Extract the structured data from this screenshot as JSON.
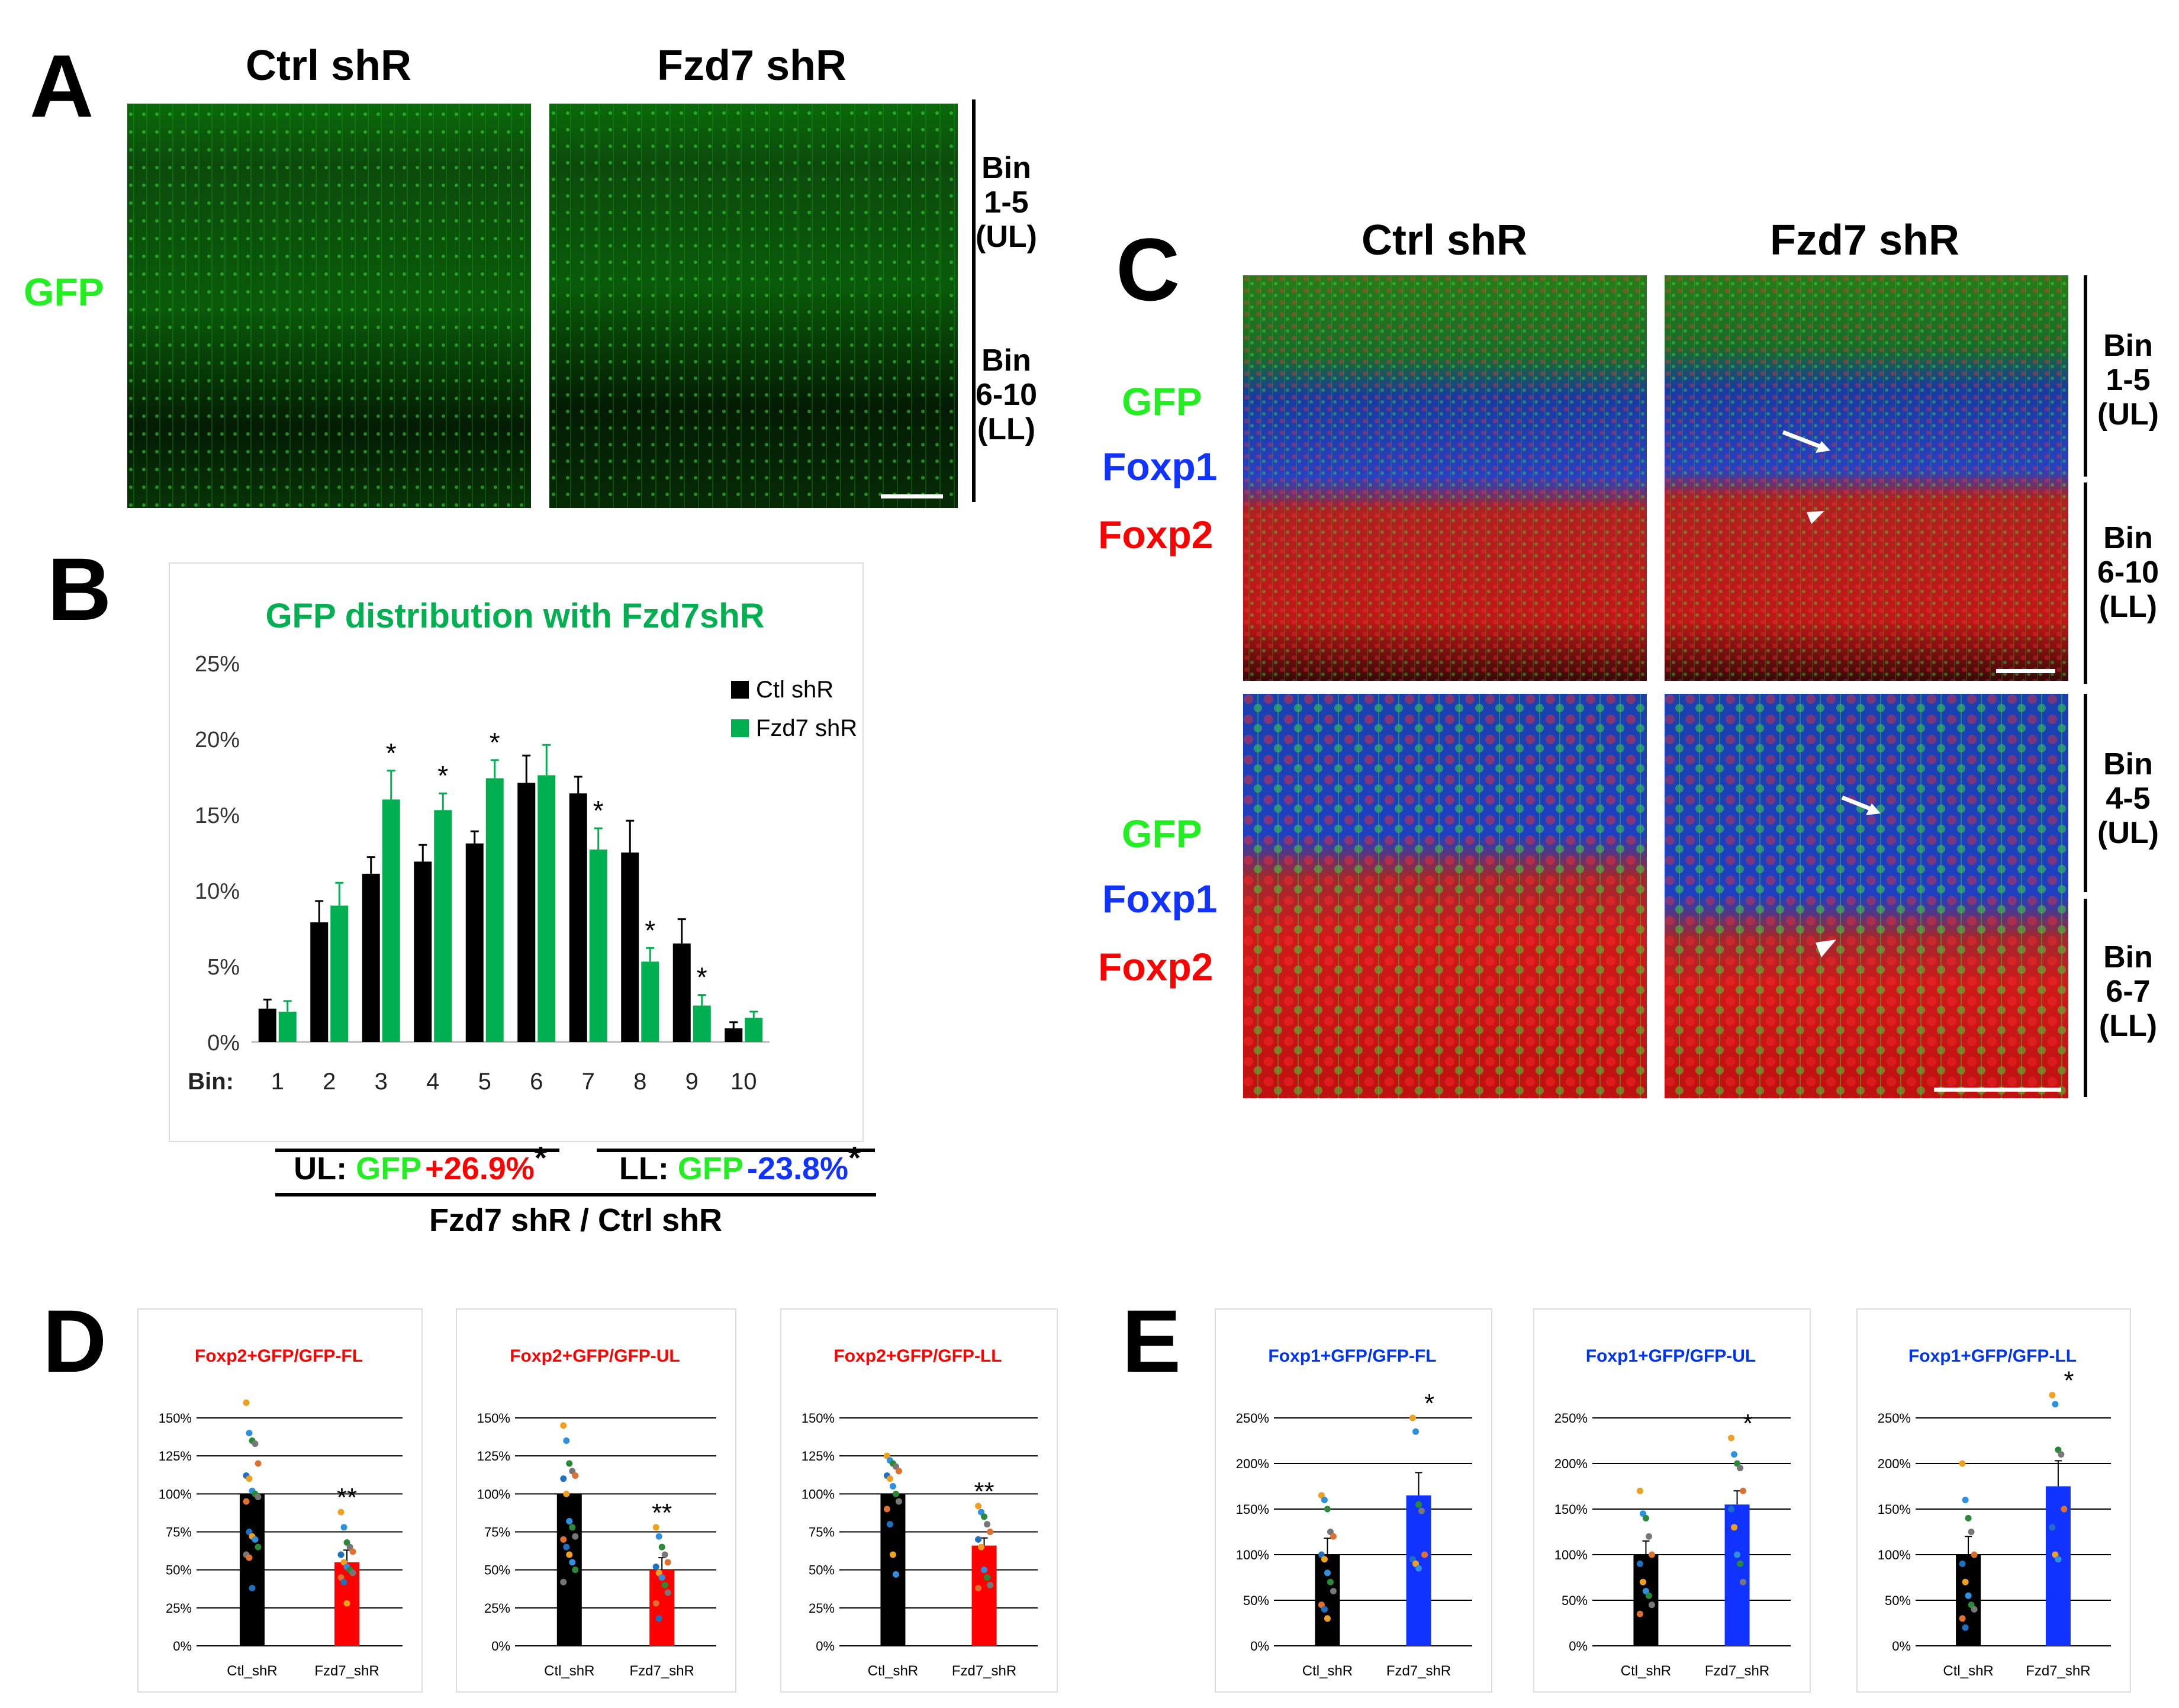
{
  "panel_a": {
    "letter": "A",
    "col_titles": [
      "Ctrl shR",
      "Fzd7 shR"
    ],
    "stain": "GFP",
    "bins": [
      {
        "l1": "Bin",
        "l2": "1-5",
        "l3": "(UL)"
      },
      {
        "l1": "Bin",
        "l2": "6-10",
        "l3": "(LL)"
      }
    ]
  },
  "panel_c": {
    "letter": "C",
    "col_titles": [
      "Ctrl shR",
      "Fzd7 shR"
    ],
    "stains": [
      "GFP",
      "Foxp1",
      "Foxp2"
    ],
    "bins_top": [
      {
        "l1": "Bin",
        "l2": "1-5",
        "l3": "(UL)"
      },
      {
        "l1": "Bin",
        "l2": "6-10",
        "l3": "(LL)"
      }
    ],
    "bins_bottom": [
      {
        "l1": "Bin",
        "l2": "4-5",
        "l3": "(UL)"
      },
      {
        "l1": "Bin",
        "l2": "6-7",
        "l3": "(LL)"
      }
    ]
  },
  "panel_b": {
    "letter": "B",
    "bin_prefix": "Bin:",
    "ul_label": "UL:",
    "ll_label": "LL:",
    "gfp_word": "GFP",
    "ul_change": "+26.9%",
    "ll_change": "-23.8%",
    "star": "*",
    "ratio_label": "Fzd7 shR / Ctrl shR"
  },
  "panel_d_letter": "D",
  "panel_e_letter": "E",
  "colors": {
    "green": "#00b050",
    "bright_green": "#22ee22",
    "blue": "#0033ee",
    "red": "#ff0000",
    "black": "#000000",
    "fzd7_red": "#ff0000",
    "fzd7_blue": "#1133ff"
  },
  "chart_data": [
    {
      "id": "B",
      "type": "bar",
      "title": "GFP distribution with Fzd7shR",
      "categories": [
        "1",
        "2",
        "3",
        "4",
        "5",
        "6",
        "7",
        "8",
        "9",
        "10"
      ],
      "ylim": [
        0,
        25
      ],
      "yticks": [
        "0%",
        "5%",
        "10%",
        "15%",
        "20%",
        "25%"
      ],
      "series": [
        {
          "name": "Ctl shR",
          "values": [
            2.2,
            7.9,
            11.1,
            11.9,
            13.1,
            17.1,
            16.4,
            12.5,
            6.5,
            0.9
          ],
          "errors": [
            0.6,
            1.4,
            1.1,
            1.1,
            0.8,
            1.8,
            1.1,
            2.1,
            1.6,
            0.4
          ]
        },
        {
          "name": "Fzd7 shR",
          "values": [
            2.0,
            9.0,
            16.0,
            15.3,
            17.4,
            17.6,
            12.7,
            5.3,
            2.4,
            1.6
          ],
          "errors": [
            0.7,
            1.5,
            1.9,
            1.1,
            1.2,
            2.0,
            1.4,
            0.9,
            0.7,
            0.4
          ]
        }
      ],
      "significance": [
        "",
        "",
        "*",
        "*",
        "*",
        "",
        "*",
        "*",
        "*",
        ""
      ]
    },
    {
      "id": "D1",
      "type": "bar",
      "title": "Foxp2+GFP/GFP-FL",
      "categories": [
        "Ctl_shR",
        "Fzd7_shR"
      ],
      "values": [
        100,
        55
      ],
      "errors": [
        0,
        8
      ],
      "ylim": [
        0,
        150
      ],
      "yticks": [
        "0%",
        "25%",
        "50%",
        "75%",
        "100%",
        "125%",
        "150%"
      ],
      "significance": "**",
      "points": [
        [
          160,
          140,
          135,
          133,
          120,
          112,
          110,
          102,
          100,
          98,
          95,
          75,
          72,
          70,
          65,
          60,
          58,
          38
        ],
        [
          88,
          78,
          68,
          65,
          62,
          60,
          55,
          52,
          50,
          48,
          45,
          42,
          28
        ]
      ]
    },
    {
      "id": "D2",
      "type": "bar",
      "title": "Foxp2+GFP/GFP-UL",
      "categories": [
        "Ctl_shR",
        "Fzd7_shR"
      ],
      "values": [
        100,
        50
      ],
      "errors": [
        0,
        8
      ],
      "ylim": [
        0,
        150
      ],
      "yticks": [
        "0%",
        "25%",
        "50%",
        "75%",
        "100%",
        "125%",
        "150%"
      ],
      "significance": "**",
      "points": [
        [
          145,
          135,
          120,
          115,
          112,
          110,
          100,
          82,
          78,
          72,
          70,
          65,
          60,
          55,
          50,
          42
        ],
        [
          78,
          72,
          65,
          60,
          55,
          52,
          48,
          45,
          40,
          35,
          28,
          18
        ]
      ]
    },
    {
      "id": "D3",
      "type": "bar",
      "title": "Foxp2+GFP/GFP-LL",
      "categories": [
        "Ctl_shR",
        "Fzd7_shR"
      ],
      "values": [
        100,
        66
      ],
      "errors": [
        0,
        5
      ],
      "ylim": [
        0,
        150
      ],
      "yticks": [
        "0%",
        "25%",
        "50%",
        "75%",
        "100%",
        "125%",
        "150%"
      ],
      "significance": "**",
      "points": [
        [
          125,
          122,
          120,
          118,
          115,
          112,
          110,
          105,
          100,
          95,
          90,
          80,
          60,
          47
        ],
        [
          92,
          88,
          85,
          80,
          75,
          70,
          65,
          50,
          45,
          40,
          38
        ]
      ]
    },
    {
      "id": "E1",
      "type": "bar",
      "title": "Foxp1+GFP/GFP-FL",
      "categories": [
        "Ctl_shR",
        "Fzd7_shR"
      ],
      "values": [
        100,
        165
      ],
      "errors": [
        18,
        25
      ],
      "ylim": [
        0,
        250
      ],
      "yticks": [
        "0%",
        "50%",
        "100%",
        "150%",
        "200%",
        "250%"
      ],
      "significance": "*",
      "points": [
        [
          165,
          160,
          150,
          125,
          120,
          100,
          95,
          80,
          70,
          60,
          45,
          40,
          30
        ],
        [
          250,
          235,
          155,
          148,
          100,
          95,
          90,
          85
        ]
      ]
    },
    {
      "id": "E2",
      "type": "bar",
      "title": "Foxp1+GFP/GFP-UL",
      "categories": [
        "Ctl_shR",
        "Fzd7_shR"
      ],
      "values": [
        100,
        155
      ],
      "errors": [
        15,
        15
      ],
      "ylim": [
        0,
        250
      ],
      "yticks": [
        "0%",
        "50%",
        "100%",
        "150%",
        "200%",
        "250%"
      ],
      "significance": "*",
      "points": [
        [
          170,
          145,
          140,
          120,
          100,
          90,
          70,
          60,
          55,
          45,
          35
        ],
        [
          228,
          210,
          200,
          195,
          170,
          150,
          130,
          100,
          90,
          70
        ]
      ]
    },
    {
      "id": "E3",
      "type": "bar",
      "title": "Foxp1+GFP/GFP-LL",
      "categories": [
        "Ctl_shR",
        "Fzd7_shR"
      ],
      "values": [
        100,
        175
      ],
      "errors": [
        20,
        28
      ],
      "ylim": [
        0,
        250
      ],
      "yticks": [
        "0%",
        "50%",
        "100%",
        "150%",
        "200%",
        "250%"
      ],
      "significance": "*",
      "points": [
        [
          200,
          160,
          140,
          125,
          100,
          90,
          70,
          55,
          45,
          40,
          30,
          20
        ],
        [
          275,
          265,
          215,
          210,
          150,
          130,
          100,
          95
        ]
      ]
    }
  ]
}
